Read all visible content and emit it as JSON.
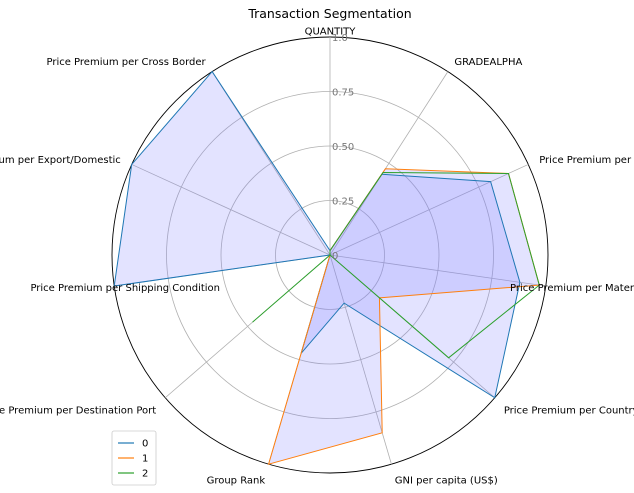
{
  "chart_data": {
    "type": "radar",
    "title": "Transaction Segmentation",
    "axes": [
      "QUANTITY",
      "GRADEALPHA",
      "Price Premium per Grade",
      "Price Premium per Material",
      "Price Premium per Country",
      "GNI per capita (US$)",
      "Group Rank",
      "Price Premium per Destination Port",
      "Price Premium per Shipping Condition",
      "Price Premium per Export/Domestic",
      "Price Premium per Cross Border"
    ],
    "rlim": [
      0,
      1
    ],
    "rticks": [
      0,
      0.25,
      0.5,
      0.75,
      1.0
    ],
    "rtick_labels": [
      "0",
      "0.25",
      "0.50",
      "0.75",
      "1.0"
    ],
    "grid": true,
    "legend": {
      "placement": "lower-left",
      "entries": [
        "0",
        "1",
        "2"
      ]
    },
    "series": [
      {
        "name": "0",
        "color": "#1f77b4",
        "values": [
          0.02,
          0.44,
          0.81,
          0.88,
          1.0,
          0.23,
          0.47,
          0.0,
          1.0,
          1.0,
          1.0
        ]
      },
      {
        "name": "1",
        "color": "#ff7f0e",
        "values": [
          0.02,
          0.47,
          0.9,
          0.97,
          0.3,
          0.85,
          1.0,
          0.0,
          0.0,
          0.0,
          0.0
        ]
      },
      {
        "name": "2",
        "color": "#2ca02c",
        "values": [
          0.02,
          0.45,
          0.9,
          0.97,
          0.72,
          0.0,
          0.0,
          0.47,
          0.0,
          0.0,
          0.0
        ]
      }
    ],
    "fill_series": [
      "0",
      "1"
    ],
    "fill_color": "#8080ff"
  }
}
